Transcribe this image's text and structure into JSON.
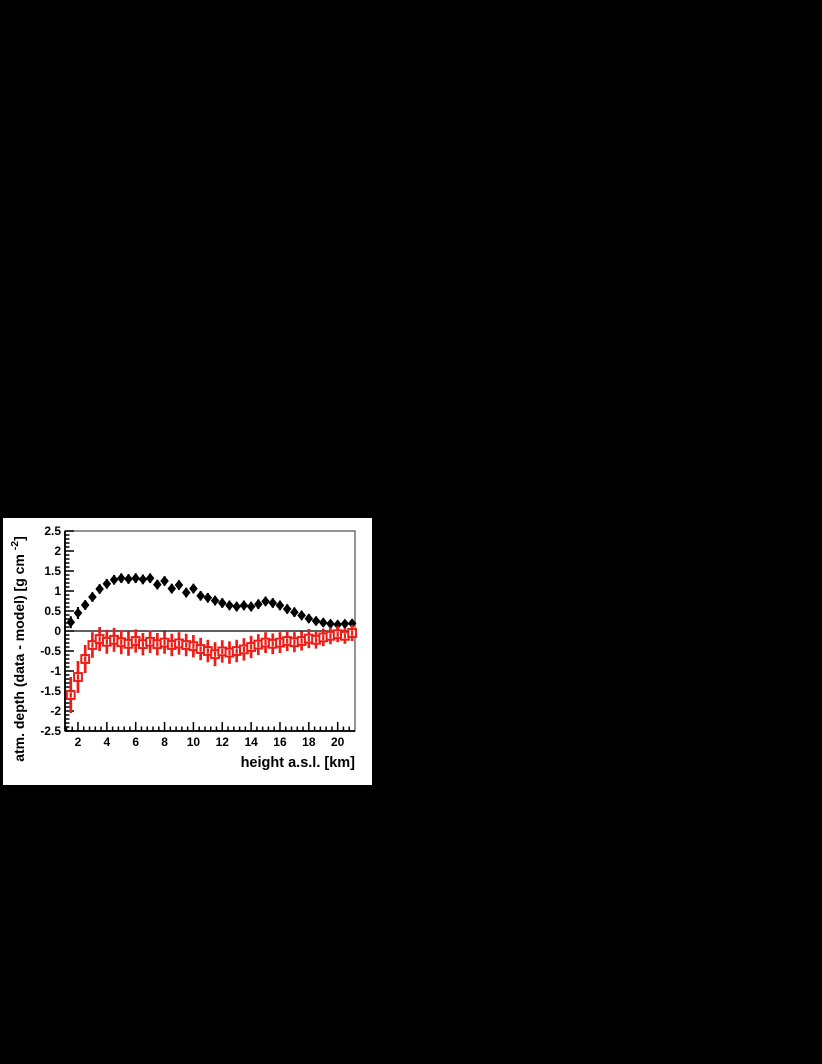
{
  "page": {
    "background": "#000000",
    "panel_background": "#ffffff"
  },
  "chart_data": {
    "type": "scatter",
    "title": "",
    "xlabel": "height a.s.l. [km]",
    "ylabel_main": "atm. depth (data - model) [g cm",
    "ylabel_exponent": "-2",
    "ylabel_close": "]",
    "xlim": [
      1.1,
      21.2
    ],
    "ylim": [
      -2.5,
      2.5
    ],
    "x_major_ticks": [
      2,
      4,
      6,
      8,
      10,
      12,
      14,
      16,
      18,
      20
    ],
    "x_tick_labels": [
      "2",
      "4",
      "6",
      "8",
      "10",
      "12",
      "14",
      "16",
      "18",
      "20"
    ],
    "x_minor_step": 0.4,
    "y_major_ticks": [
      2.5,
      2,
      1.5,
      1,
      0.5,
      0,
      -0.5,
      -1,
      -1.5,
      -2,
      -2.5
    ],
    "y_tick_labels": [
      "2.5",
      "2",
      "1.5",
      "1",
      "0.5",
      "0",
      "-0.5",
      "-1",
      "-1.5",
      "-2",
      "-2.5"
    ],
    "y_minor_step": 0.1,
    "zero_line": 0,
    "grid": false,
    "legend": "none",
    "frame_color": "#666666",
    "axis_color": "#000000",
    "x": [
      1.5,
      2,
      2.5,
      3,
      3.5,
      4,
      4.5,
      5,
      5.5,
      6,
      6.5,
      7,
      7.5,
      8,
      8.5,
      9,
      9.5,
      10,
      10.5,
      11,
      11.5,
      12,
      12.5,
      13,
      13.5,
      14,
      14.5,
      15,
      15.5,
      16,
      16.5,
      17,
      17.5,
      18,
      18.5,
      19,
      19.5,
      20,
      20.5,
      21
    ],
    "series": [
      {
        "name": "data minus model (black filled diamonds)",
        "marker": "filled-diamond",
        "color": "#000000",
        "values": [
          0.22,
          0.45,
          0.65,
          0.85,
          1.05,
          1.18,
          1.28,
          1.32,
          1.3,
          1.32,
          1.29,
          1.32,
          1.16,
          1.25,
          1.06,
          1.15,
          0.96,
          1.06,
          0.88,
          0.83,
          0.76,
          0.7,
          0.64,
          0.61,
          0.64,
          0.61,
          0.67,
          0.74,
          0.7,
          0.64,
          0.55,
          0.47,
          0.39,
          0.31,
          0.25,
          0.21,
          0.18,
          0.16,
          0.18,
          0.19
        ],
        "errors": [
          0.15,
          0.15,
          0.12,
          0.12,
          0.12,
          0.12,
          0.12,
          0.12,
          0.12,
          0.12,
          0.12,
          0.12,
          0.12,
          0.12,
          0.12,
          0.12,
          0.12,
          0.12,
          0.12,
          0.12,
          0.12,
          0.12,
          0.12,
          0.12,
          0.12,
          0.12,
          0.12,
          0.12,
          0.12,
          0.12,
          0.12,
          0.12,
          0.12,
          0.11,
          0.11,
          0.11,
          0.1,
          0.1,
          0.1,
          0.1
        ]
      },
      {
        "name": "data minus model (red open squares)",
        "marker": "open-square",
        "color": "#ed1c16",
        "values": [
          -1.6,
          -1.15,
          -0.7,
          -0.35,
          -0.2,
          -0.27,
          -0.22,
          -0.28,
          -0.32,
          -0.25,
          -0.33,
          -0.27,
          -0.33,
          -0.29,
          -0.35,
          -0.31,
          -0.35,
          -0.38,
          -0.45,
          -0.5,
          -0.58,
          -0.51,
          -0.54,
          -0.5,
          -0.46,
          -0.4,
          -0.34,
          -0.29,
          -0.32,
          -0.29,
          -0.25,
          -0.28,
          -0.25,
          -0.19,
          -0.22,
          -0.16,
          -0.12,
          -0.08,
          -0.12,
          -0.05
        ],
        "errors": [
          0.45,
          0.4,
          0.35,
          0.32,
          0.3,
          0.3,
          0.3,
          0.3,
          0.3,
          0.29,
          0.28,
          0.28,
          0.28,
          0.28,
          0.28,
          0.28,
          0.28,
          0.28,
          0.28,
          0.28,
          0.3,
          0.28,
          0.28,
          0.28,
          0.28,
          0.28,
          0.26,
          0.26,
          0.26,
          0.26,
          0.25,
          0.25,
          0.24,
          0.24,
          0.22,
          0.22,
          0.21,
          0.2,
          0.2,
          0.2
        ]
      }
    ]
  }
}
